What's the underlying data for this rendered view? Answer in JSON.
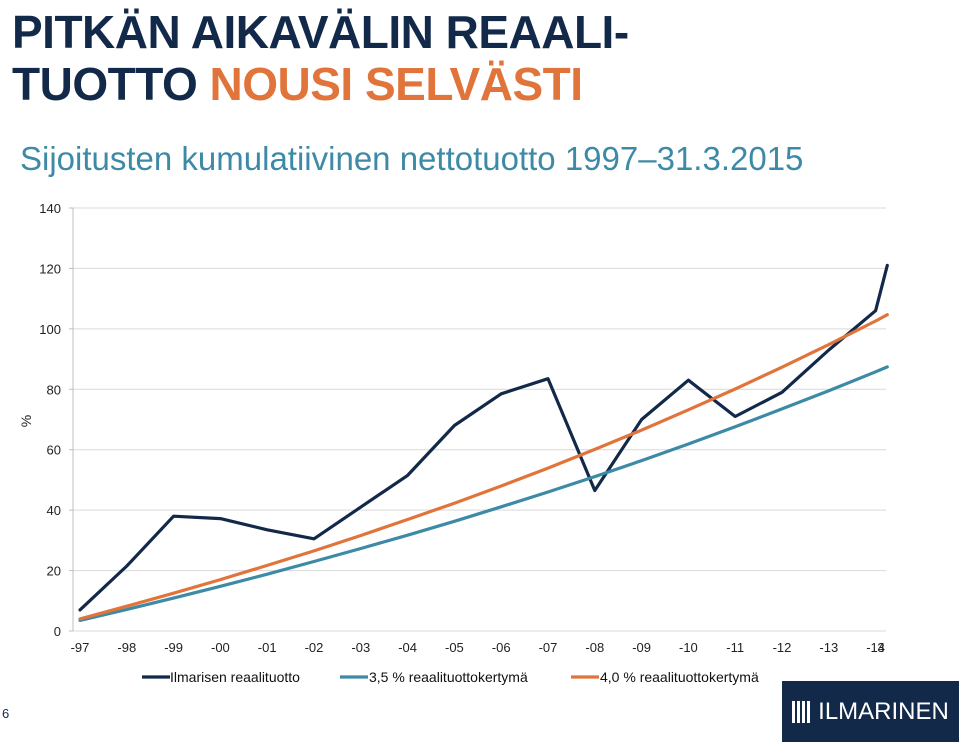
{
  "header": {
    "title_line1": "PITKÄN AIKAVÄLIN REAALI-",
    "title_line2_part1": "TUOTTO ",
    "title_line2_part2": "NOUSI SELVÄSTI",
    "subtitle": "Sijoitusten kumulatiivinen nettotuotto 1997–31.3.2015"
  },
  "colors": {
    "navy": "#12294a",
    "orange": "#e0743a",
    "teal": "#3d8aa6"
  },
  "page_number": "6",
  "logo": {
    "text": "ILMARINEN",
    "icon": "ilmarinen-logo-icon"
  },
  "chart_data": {
    "type": "line",
    "ylabel": "%",
    "xlabel": "",
    "ylim": [
      0,
      140
    ],
    "yticks": [
      0,
      20,
      40,
      60,
      80,
      100,
      120,
      140
    ],
    "categories": [
      "-97",
      "-98",
      "-99",
      "-00",
      "-01",
      "-02",
      "-03",
      "-04",
      "-05",
      "-06",
      "-07",
      "-08",
      "-09",
      "-10",
      "-11",
      "-12",
      "-13",
      "-14",
      "3"
    ],
    "grid": true,
    "legend_position": "bottom",
    "series": [
      {
        "name": "Ilmarisen reaalituotto",
        "color": "#12294a",
        "x": [
          0,
          1,
          2,
          3,
          4,
          5,
          6,
          7,
          8,
          9,
          10,
          11,
          12,
          13,
          14,
          15,
          16,
          17,
          17.25
        ],
        "values": [
          7,
          21.5,
          38,
          37.2,
          33.5,
          30.5,
          41,
          51.5,
          68,
          78.5,
          83.5,
          46.5,
          70,
          83,
          71,
          79,
          93,
          106,
          121
        ]
      },
      {
        "name": "3,5 % reaalituottokertymä",
        "color": "#3d8aa6",
        "x": [
          0,
          1,
          2,
          3,
          4,
          5,
          6,
          7,
          8,
          9,
          10,
          11,
          12,
          13,
          14,
          15,
          16,
          17,
          17.25
        ],
        "values": [
          3.5,
          7.1,
          10.9,
          14.8,
          18.8,
          23,
          27.3,
          31.7,
          36.3,
          41.1,
          46,
          51.1,
          56.4,
          61.9,
          67.6,
          73.5,
          79.5,
          85.8,
          87.4
        ]
      },
      {
        "name": "4,0 % reaalituottokertymä",
        "color": "#e0743a",
        "x": [
          0,
          1,
          2,
          3,
          4,
          5,
          6,
          7,
          8,
          9,
          10,
          11,
          12,
          13,
          14,
          15,
          16,
          17,
          17.25
        ],
        "values": [
          4,
          8.2,
          12.5,
          17,
          21.7,
          26.5,
          31.6,
          36.9,
          42.3,
          48,
          53.9,
          60.1,
          66.5,
          73.2,
          80.1,
          87.3,
          94.8,
          102.6,
          104.7
        ]
      }
    ]
  }
}
